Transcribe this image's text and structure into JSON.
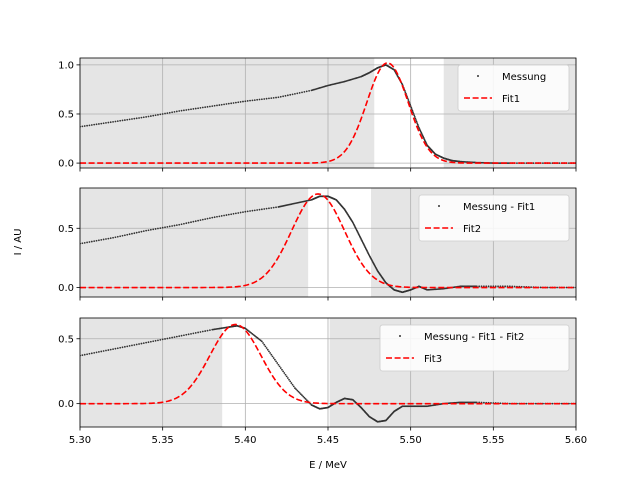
{
  "figure": {
    "xlabel": "E / MeV",
    "ylabel": "I / AU"
  },
  "colors": {
    "data": "#333333",
    "fit": "#ff0000",
    "excluded_region": "#e5e5e5",
    "grid": "#b0b0b0"
  },
  "chart_data": [
    {
      "type": "line",
      "title": "",
      "xlim": [
        5.3,
        5.6
      ],
      "ylim": [
        -0.05,
        1.07
      ],
      "xticks": [
        5.3,
        5.35,
        5.4,
        5.45,
        5.5,
        5.55,
        5.6
      ],
      "yticks": [
        0.0,
        0.5,
        1.0
      ],
      "ytick_labels": [
        "0.0",
        "0.5",
        "1.0"
      ],
      "grid": true,
      "legend": "top-right",
      "shaded_regions": [
        [
          5.3,
          5.478
        ],
        [
          5.52,
          5.6
        ]
      ],
      "series": [
        {
          "name": "Messung",
          "style": "dots",
          "x": [
            5.3,
            5.32,
            5.34,
            5.36,
            5.38,
            5.4,
            5.42,
            5.44,
            5.45,
            5.46,
            5.47,
            5.475,
            5.48,
            5.485,
            5.49,
            5.495,
            5.5,
            5.505,
            5.51,
            5.515,
            5.52,
            5.525,
            5.53,
            5.54,
            5.55,
            5.56,
            5.58,
            5.6
          ],
          "y": [
            0.37,
            0.42,
            0.47,
            0.53,
            0.58,
            0.63,
            0.67,
            0.74,
            0.79,
            0.83,
            0.88,
            0.92,
            0.97,
            1.0,
            0.95,
            0.8,
            0.58,
            0.36,
            0.18,
            0.09,
            0.05,
            0.025,
            0.015,
            0.005,
            0.0,
            0.0,
            0.0,
            0.0
          ]
        },
        {
          "name": "Fit1",
          "style": "dashed",
          "model": "gaussian",
          "amplitude": 1.02,
          "center": 5.486,
          "sigma": 0.0125
        }
      ]
    },
    {
      "type": "line",
      "title": "",
      "xlim": [
        5.3,
        5.6
      ],
      "ylim": [
        -0.08,
        0.84
      ],
      "xticks": [
        5.3,
        5.35,
        5.4,
        5.45,
        5.5,
        5.55,
        5.6
      ],
      "yticks": [
        0.0,
        0.5
      ],
      "ytick_labels": [
        "0.0",
        "0.5"
      ],
      "grid": true,
      "legend": "top-right",
      "shaded_regions": [
        [
          5.3,
          5.438
        ],
        [
          5.476,
          5.6
        ]
      ],
      "series": [
        {
          "name": "Messung - Fit1",
          "style": "dots",
          "x": [
            5.3,
            5.32,
            5.34,
            5.36,
            5.38,
            5.4,
            5.42,
            5.43,
            5.44,
            5.445,
            5.45,
            5.455,
            5.46,
            5.465,
            5.47,
            5.475,
            5.48,
            5.485,
            5.49,
            5.495,
            5.5,
            5.505,
            5.51,
            5.52,
            5.53,
            5.54,
            5.56,
            5.58,
            5.6
          ],
          "y": [
            0.37,
            0.42,
            0.48,
            0.53,
            0.59,
            0.64,
            0.68,
            0.71,
            0.74,
            0.77,
            0.77,
            0.74,
            0.66,
            0.55,
            0.41,
            0.27,
            0.14,
            0.04,
            -0.02,
            -0.04,
            -0.02,
            0.01,
            -0.02,
            -0.01,
            0.01,
            0.01,
            0.01,
            0.0,
            0.0
          ]
        },
        {
          "name": "Fit2",
          "style": "dashed",
          "model": "gaussian",
          "amplitude": 0.79,
          "center": 5.444,
          "sigma": 0.016
        }
      ]
    },
    {
      "type": "line",
      "title": "",
      "xlim": [
        5.3,
        5.6
      ],
      "ylim": [
        -0.18,
        0.66
      ],
      "xticks": [
        5.3,
        5.35,
        5.4,
        5.45,
        5.5,
        5.55,
        5.6
      ],
      "xtick_labels": [
        "5.30",
        "5.35",
        "5.40",
        "5.45",
        "5.50",
        "5.55",
        "5.60"
      ],
      "yticks": [
        0.0,
        0.5
      ],
      "ytick_labels": [
        "0.0",
        "0.5"
      ],
      "grid": true,
      "legend": "top-right",
      "shaded_regions": [
        [
          5.3,
          5.386
        ],
        [
          5.451,
          5.6
        ]
      ],
      "series": [
        {
          "name": "Messung - Fit1 - Fit2",
          "style": "dots",
          "x": [
            5.3,
            5.32,
            5.34,
            5.36,
            5.38,
            5.39,
            5.395,
            5.4,
            5.41,
            5.42,
            5.43,
            5.44,
            5.445,
            5.45,
            5.455,
            5.46,
            5.465,
            5.47,
            5.475,
            5.48,
            5.485,
            5.49,
            5.495,
            5.5,
            5.505,
            5.51,
            5.52,
            5.53,
            5.54,
            5.56,
            5.58,
            5.6
          ],
          "y": [
            0.37,
            0.42,
            0.47,
            0.52,
            0.57,
            0.59,
            0.6,
            0.58,
            0.48,
            0.3,
            0.12,
            -0.01,
            -0.04,
            -0.03,
            0.01,
            0.04,
            0.03,
            -0.03,
            -0.1,
            -0.14,
            -0.13,
            -0.06,
            -0.02,
            -0.02,
            -0.02,
            -0.02,
            0.0,
            0.01,
            0.01,
            0.0,
            0.0,
            0.0
          ]
        },
        {
          "name": "Fit3",
          "style": "dashed",
          "model": "gaussian",
          "amplitude": 0.61,
          "center": 5.394,
          "sigma": 0.0155
        }
      ]
    }
  ]
}
